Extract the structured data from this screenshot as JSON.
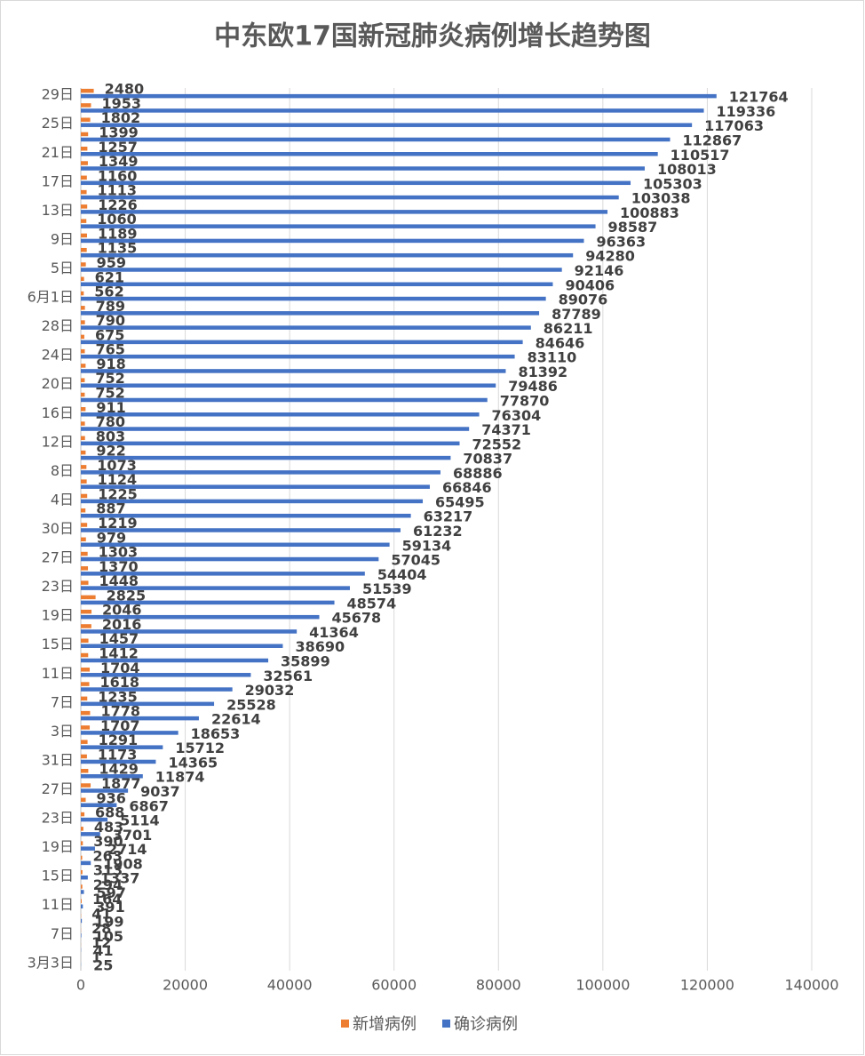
{
  "chart_data": {
    "type": "hbar",
    "title": "中东欧17国新冠肺炎病例增长趋势图",
    "categories": [
      "29日",
      null,
      "25日",
      null,
      "21日",
      null,
      "17日",
      null,
      "13日",
      null,
      "9日",
      null,
      "5日",
      null,
      "6月1日",
      null,
      "28日",
      null,
      "24日",
      null,
      "20日",
      null,
      "16日",
      null,
      "12日",
      null,
      "8日",
      null,
      "4日",
      null,
      "30日",
      null,
      "27日",
      null,
      "23日",
      null,
      "19日",
      null,
      "15日",
      null,
      "11日",
      null,
      "7日",
      null,
      "3日",
      null,
      "31日",
      null,
      "27日",
      null,
      "23日",
      null,
      "19日",
      null,
      "15日",
      null,
      "11日",
      null,
      "7日",
      null,
      "3月3日"
    ],
    "series": [
      {
        "name": "新增病例",
        "color": "#ed7d31",
        "values": [
          2480,
          1953,
          1802,
          1399,
          1257,
          1349,
          1160,
          1113,
          1226,
          1060,
          1189,
          1135,
          959,
          621,
          562,
          789,
          790,
          675,
          765,
          918,
          752,
          752,
          911,
          780,
          803,
          922,
          1073,
          1124,
          1225,
          887,
          1219,
          979,
          1303,
          1370,
          1448,
          2825,
          2046,
          2016,
          1457,
          1412,
          1704,
          1618,
          1235,
          1778,
          1707,
          1291,
          1173,
          1429,
          1877,
          936,
          688,
          483,
          390,
          263,
          313,
          294,
          164,
          41,
          28,
          12,
          1
        ]
      },
      {
        "name": "确诊病例",
        "color": "#4472c4",
        "values": [
          121764,
          119336,
          117063,
          112867,
          110517,
          108013,
          105303,
          103038,
          100883,
          98587,
          96363,
          94280,
          92146,
          90406,
          89076,
          87789,
          86211,
          84646,
          83110,
          81392,
          79486,
          77870,
          76304,
          74371,
          72552,
          70837,
          68886,
          66846,
          65495,
          63217,
          61232,
          59134,
          57045,
          54404,
          51539,
          48574,
          45678,
          41364,
          38690,
          35899,
          32561,
          29032,
          25528,
          22614,
          18653,
          15712,
          14365,
          11874,
          9037,
          6867,
          5114,
          3701,
          2714,
          1908,
          1337,
          597,
          391,
          199,
          105,
          41,
          25
        ]
      }
    ],
    "xlim": [
      0,
      140000
    ],
    "xticks": [
      0,
      20000,
      40000,
      60000,
      80000,
      100000,
      120000,
      140000
    ],
    "grid": true,
    "legend": "bottom"
  }
}
